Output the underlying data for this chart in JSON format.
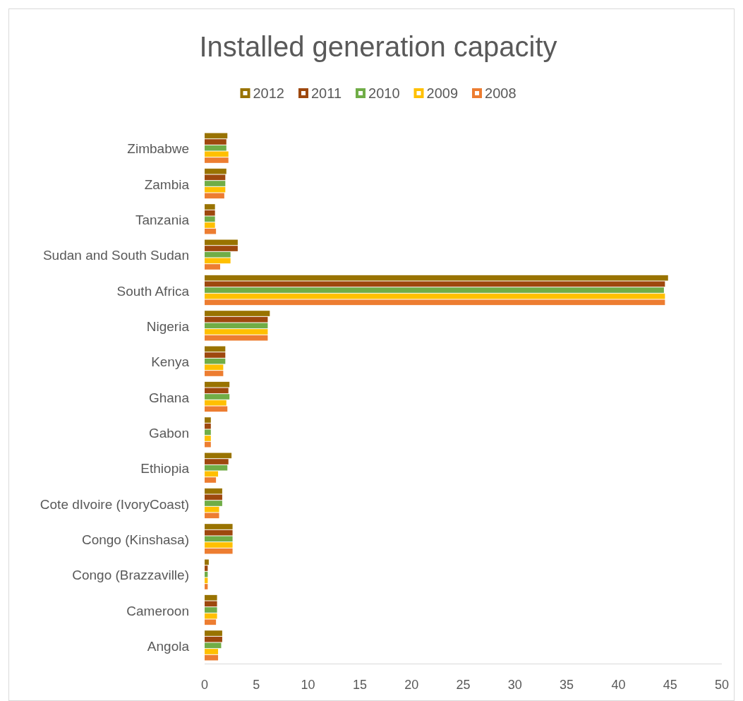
{
  "chart_data": {
    "type": "bar",
    "orientation": "horizontal",
    "title": "Installed generation capacity",
    "categories": [
      "Zimbabwe",
      "Zambia",
      "Tanzania",
      "Sudan and South Sudan",
      "South Africa",
      "Nigeria",
      "Kenya",
      "Ghana",
      "Gabon",
      "Ethiopia",
      "Cote dIvoire (IvoryCoast)",
      "Congo (Kinshasa)",
      "Congo (Brazzaville)",
      "Cameroon",
      "Angola"
    ],
    "series": [
      {
        "name": "2012",
        "color": "#997300",
        "values": [
          2.2,
          2.1,
          1.0,
          3.2,
          44.8,
          6.3,
          2.0,
          2.4,
          0.6,
          2.6,
          1.7,
          2.7,
          0.4,
          1.2,
          1.7
        ]
      },
      {
        "name": "2011",
        "color": "#9e480e",
        "values": [
          2.1,
          2.0,
          1.0,
          3.2,
          44.5,
          6.1,
          2.0,
          2.3,
          0.6,
          2.3,
          1.7,
          2.7,
          0.3,
          1.2,
          1.7
        ]
      },
      {
        "name": "2010",
        "color": "#70ad47",
        "values": [
          2.1,
          2.0,
          1.0,
          2.5,
          44.4,
          6.1,
          2.0,
          2.4,
          0.6,
          2.2,
          1.7,
          2.7,
          0.3,
          1.2,
          1.6
        ]
      },
      {
        "name": "2009",
        "color": "#ffc000",
        "values": [
          2.3,
          2.0,
          1.0,
          2.5,
          44.5,
          6.1,
          1.8,
          2.1,
          0.6,
          1.3,
          1.4,
          2.7,
          0.3,
          1.2,
          1.3
        ]
      },
      {
        "name": "2008",
        "color": "#ed7d31",
        "values": [
          2.3,
          1.9,
          1.1,
          1.5,
          44.5,
          6.1,
          1.8,
          2.2,
          0.6,
          1.1,
          1.4,
          2.7,
          0.3,
          1.1,
          1.3
        ]
      }
    ],
    "xlim": [
      0,
      50
    ],
    "xticks": [
      0,
      5,
      10,
      15,
      20,
      25,
      30,
      35,
      40,
      45,
      50
    ],
    "legend": "top",
    "grid": false
  }
}
